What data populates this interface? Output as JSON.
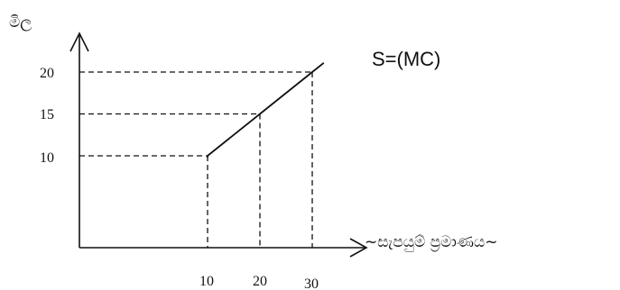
{
  "chart_data": {
    "type": "line",
    "title": "",
    "ylabel": "මිල",
    "xlabel": "~සැපයුම් ප්‍රමාණය~",
    "y_ticks": [
      "20",
      "15",
      "10"
    ],
    "x_ticks": [
      "10",
      "20",
      "30"
    ],
    "series": [
      {
        "name": "S=(MC)",
        "points": [
          {
            "x": 10,
            "y": 10
          },
          {
            "x": 20,
            "y": 15
          },
          {
            "x": 30,
            "y": 20
          }
        ]
      }
    ],
    "guides": "dashed lines from each point to both axes",
    "grid": false,
    "legend": "none"
  }
}
